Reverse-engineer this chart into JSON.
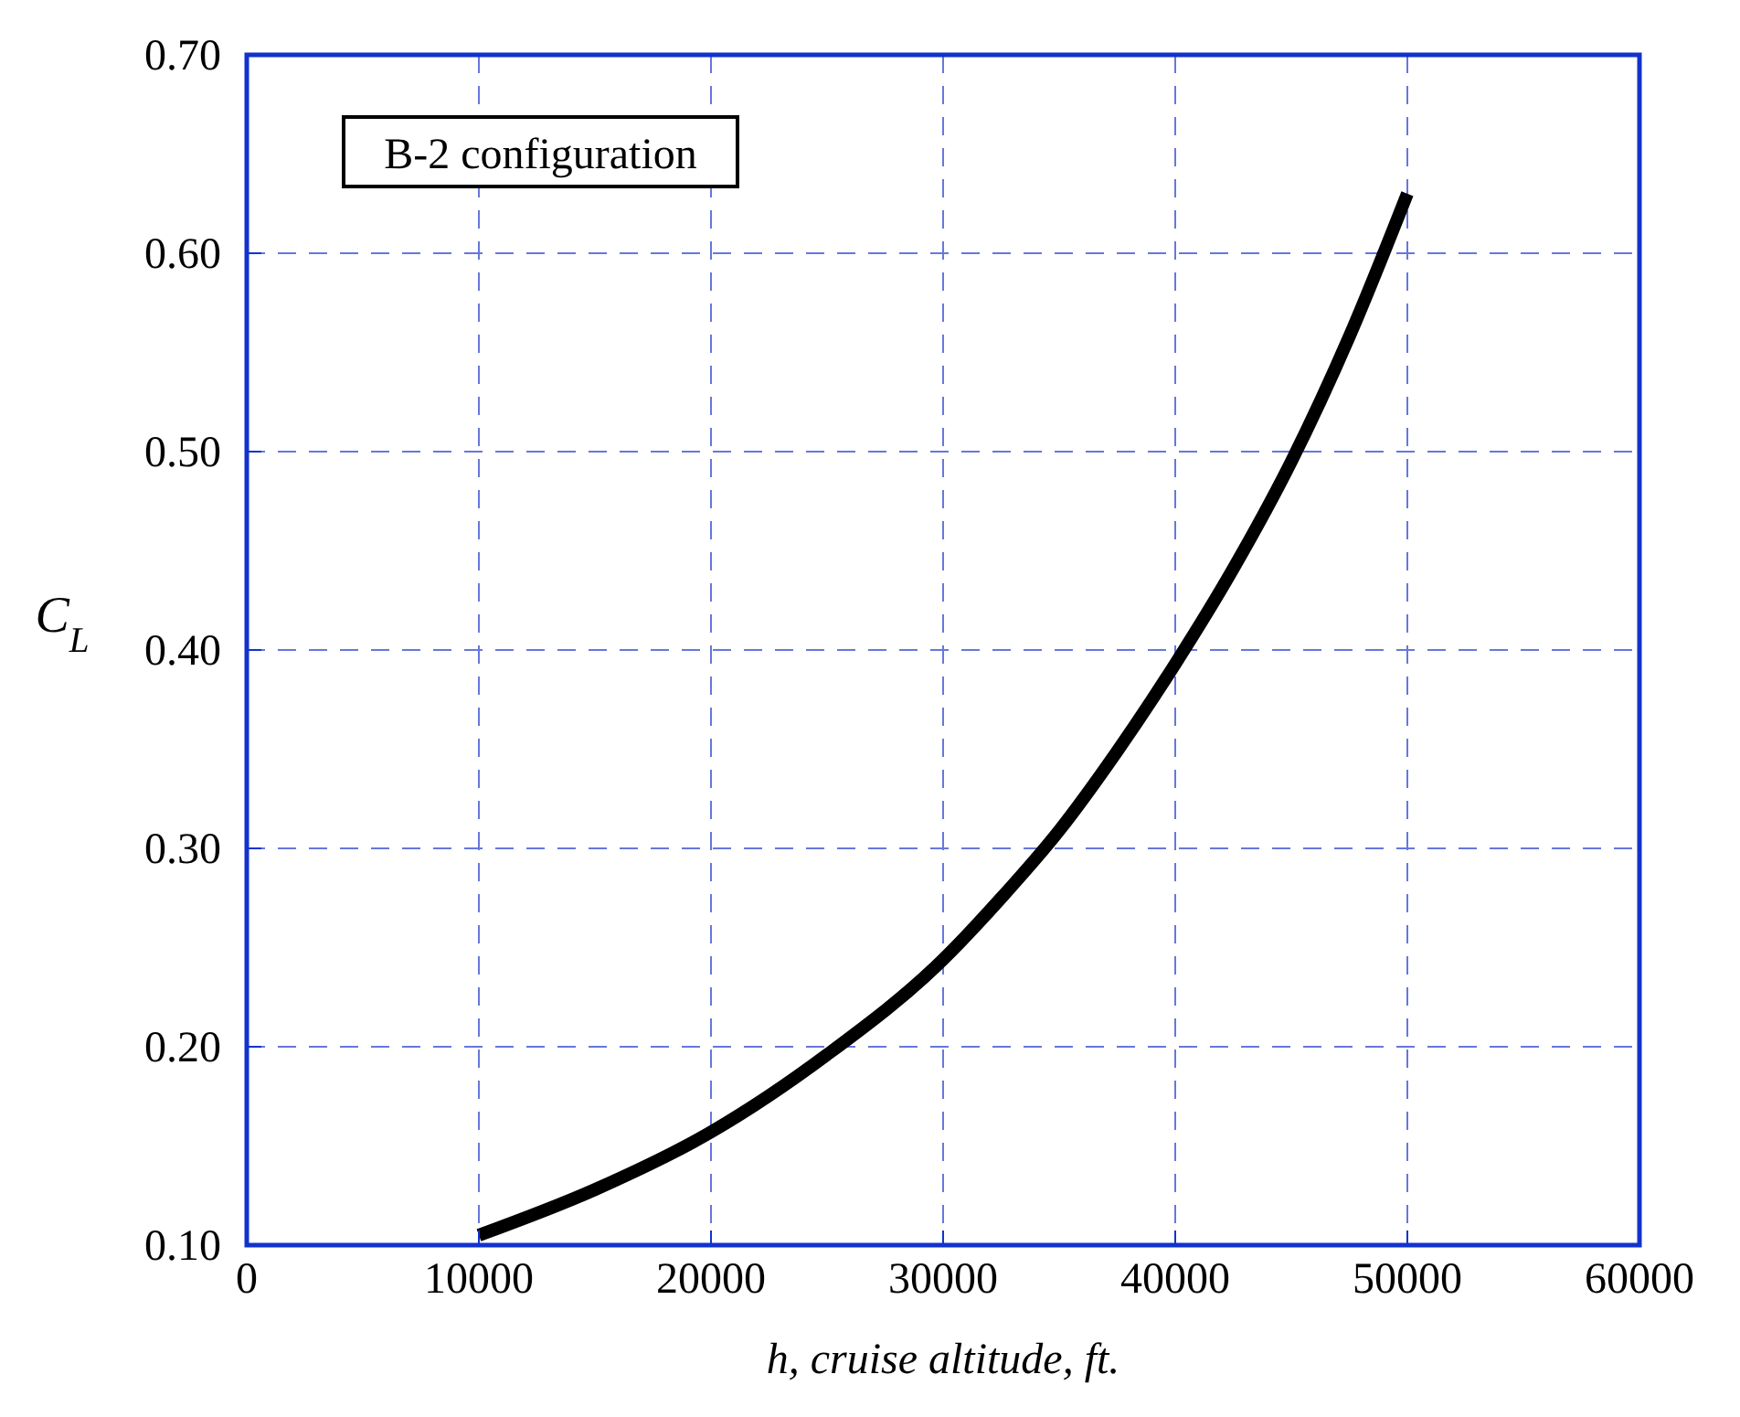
{
  "chart_data": {
    "type": "line",
    "xlabel": "h, cruise altitude, ft.",
    "ylabel": "C$_{L}$",
    "annotations": [
      "B-2 configuration"
    ],
    "x": [
      10000,
      15000,
      20000,
      25000,
      30000,
      32500,
      35000,
      37500,
      40000,
      42500,
      45000,
      47500,
      50000
    ],
    "series": [
      {
        "color": "#000000",
        "values": [
          0.105,
          0.128,
          0.157,
          0.196,
          0.244,
          0.275,
          0.309,
          0.349,
          0.393,
          0.441,
          0.495,
          0.558,
          0.63
        ]
      }
    ],
    "xlim": [
      0,
      60000
    ],
    "xticks": [
      0,
      10000,
      20000,
      30000,
      40000,
      50000,
      60000
    ],
    "ylim": [
      0.1,
      0.7
    ],
    "yticks": [
      {
        "value": 0.1,
        "label": "0.10"
      },
      {
        "value": 0.2,
        "label": "0.20"
      },
      {
        "value": 0.3,
        "label": "0.30"
      },
      {
        "value": 0.4,
        "label": "0.40"
      },
      {
        "value": 0.5,
        "label": "0.50"
      },
      {
        "value": 0.6,
        "label": "0.60"
      },
      {
        "value": 0.7,
        "label": "0.70"
      }
    ],
    "grid": true,
    "line_style": "solid",
    "marker": "none"
  }
}
